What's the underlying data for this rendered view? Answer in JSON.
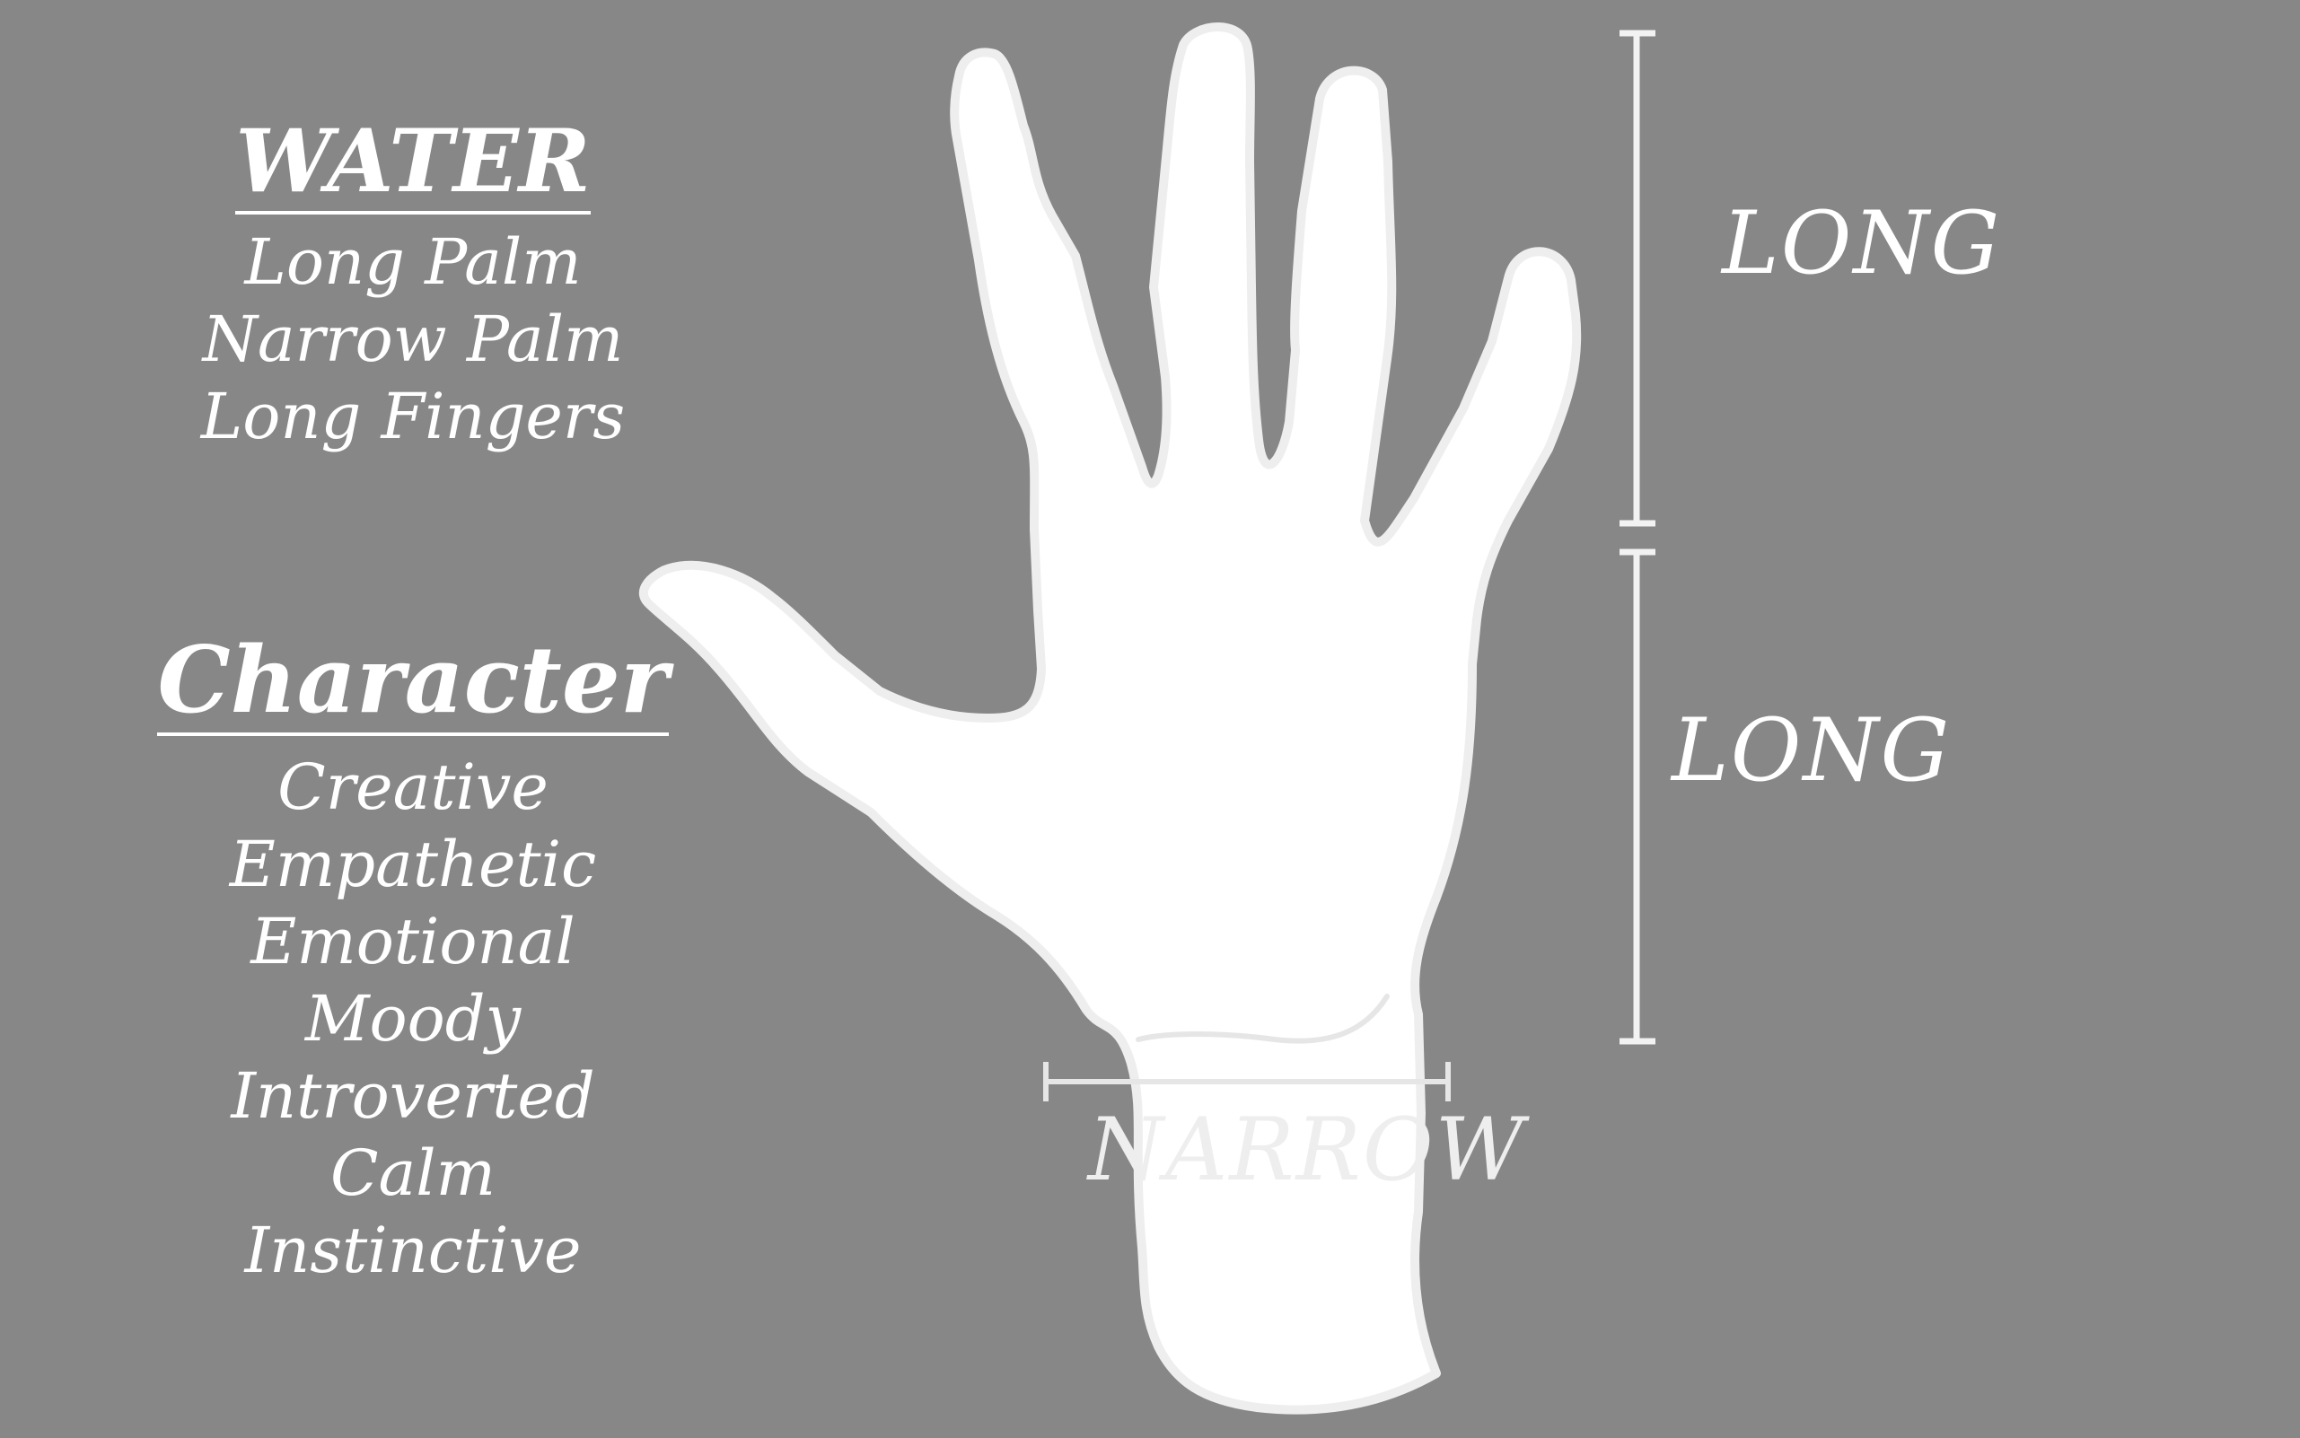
{
  "background_color": "#878787",
  "hand_color": "#ffffff",
  "element": {
    "title": "WATER",
    "traits": [
      "Long Palm",
      "Narrow Palm",
      "Long Fingers"
    ]
  },
  "character": {
    "title": "Character",
    "traits": [
      "Creative",
      "Empathetic",
      "Emotional",
      "Moody",
      "Introverted",
      "Calm",
      "Instinctive"
    ]
  },
  "measurements": {
    "fingers_label": "LONG",
    "palm_length_label": "LONG",
    "palm_width_label": "NARROW"
  }
}
